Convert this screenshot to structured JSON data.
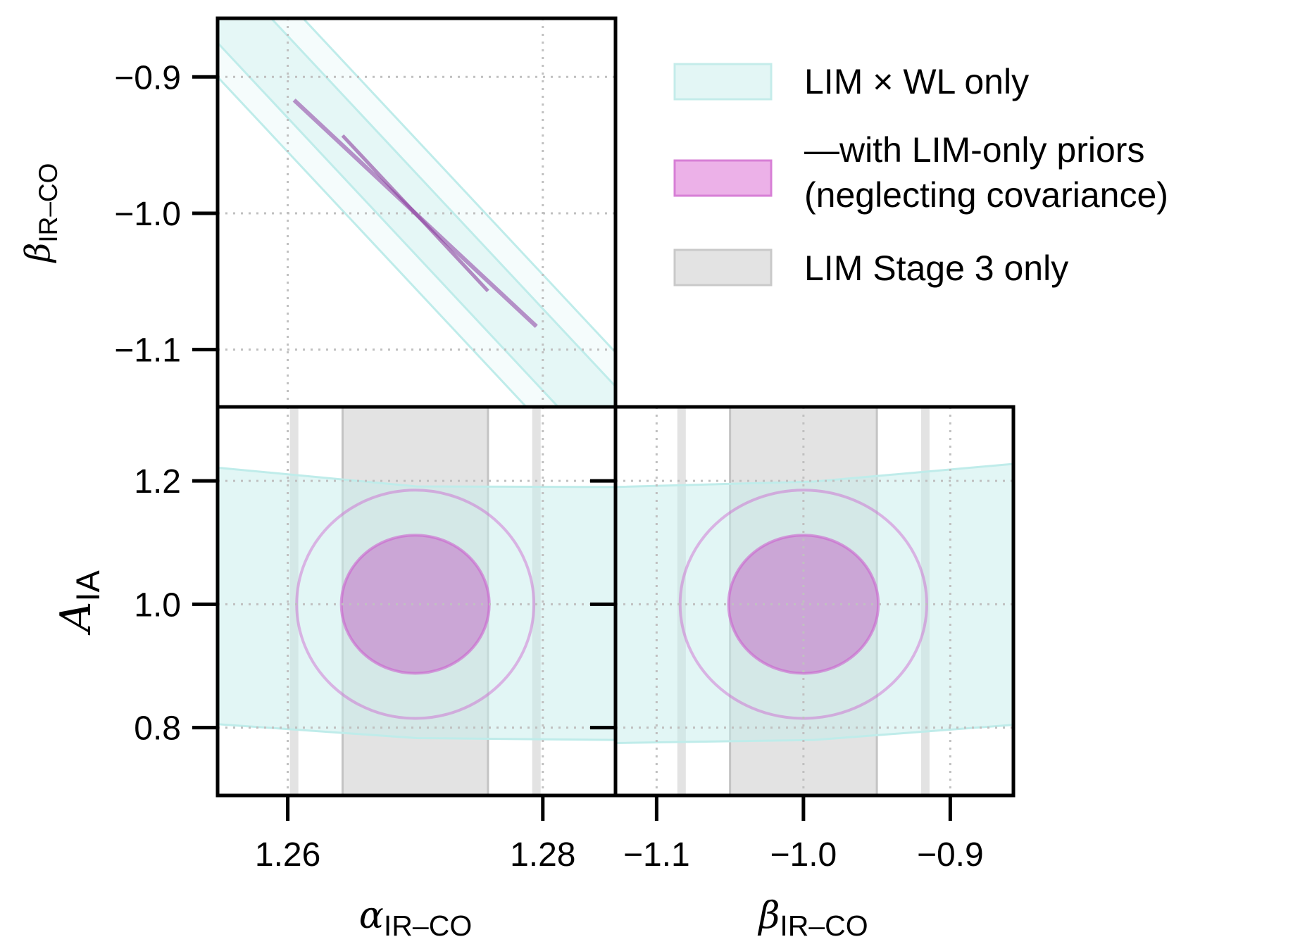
{
  "chart_data": [
    {
      "type": "band",
      "panel": "beta_IR-CO vs alpha_IR-CO",
      "ylabel_sym": "β",
      "ylabel_sub": "IR–CO",
      "xlim": [
        1.2545,
        1.2857
      ],
      "ylim": [
        -1.142,
        -0.857
      ],
      "y_ticks": [
        -0.9,
        -1.0,
        -1.1
      ],
      "y_tick_labels": [
        "−0.9",
        "−1.0",
        "−1.1"
      ],
      "x_ticks": [
        1.26,
        1.28
      ],
      "series": [
        {
          "name": "LIM × WL only",
          "shape": "degeneracy-band",
          "center_x": 1.27,
          "center_y": -1.0,
          "slope": -10.0,
          "half_width_y_1sigma": 0.03,
          "half_width_y_2sigma": 0.055
        },
        {
          "name": "—with LIM-only priors (neglecting covariance)",
          "shape": "degeneracy-line",
          "x": [
            1.2605,
            1.2795
          ],
          "y": [
            -0.917,
            -1.083
          ]
        }
      ]
    },
    {
      "type": "contour",
      "panel": "A_IA vs alpha_IR-CO",
      "xlabel_sym": "α",
      "xlabel_sub": "IR–CO",
      "ylabel_sym": "A",
      "ylabel_sub": "IA",
      "xlim": [
        1.2545,
        1.2857
      ],
      "ylim": [
        0.69,
        1.32
      ],
      "x_ticks": [
        1.26,
        1.28
      ],
      "x_tick_labels": [
        "1.26",
        "1.28"
      ],
      "y_ticks": [
        1.2,
        1.0,
        0.8
      ],
      "y_tick_labels": [
        "1.2",
        "1.0",
        "0.8"
      ],
      "series": [
        {
          "name": "LIM Stage 3 only",
          "shape": "vertical-band",
          "one_sigma": [
            1.2643,
            1.2757
          ],
          "two_sigma": [
            1.2605,
            1.2795
          ]
        },
        {
          "name": "LIM × WL only",
          "shape": "horizontal-band",
          "upper": [
            1.222,
            1.19
          ],
          "lower": [
            0.806,
            0.78
          ]
        },
        {
          "name": "—with LIM-only priors (neglecting covariance)",
          "shape": "ellipse",
          "center": [
            1.27,
            1.0
          ],
          "one_sigma_radii": [
            0.0058,
            0.112
          ],
          "two_sigma_radii": [
            0.0093,
            0.185
          ]
        }
      ]
    },
    {
      "type": "contour",
      "panel": "A_IA vs beta_IR-CO",
      "xlabel_sym": "β",
      "xlabel_sub": "IR–CO",
      "xlim": [
        -1.128,
        -0.857
      ],
      "ylim": [
        0.69,
        1.32
      ],
      "x_ticks": [
        -1.1,
        -1.0,
        -0.9
      ],
      "x_tick_labels": [
        "−1.1",
        "−1.0",
        "−0.9"
      ],
      "y_ticks": [
        1.2,
        1.0,
        0.8
      ],
      "series": [
        {
          "name": "LIM Stage 3 only",
          "shape": "vertical-band",
          "one_sigma": [
            -1.05,
            -0.95
          ],
          "two_sigma": [
            -1.083,
            -0.917
          ]
        },
        {
          "name": "LIM × WL only",
          "shape": "horizontal-band",
          "upper": [
            1.19,
            1.228
          ],
          "lower": [
            0.775,
            0.805
          ]
        },
        {
          "name": "—with LIM-only priors (neglecting covariance)",
          "shape": "ellipse",
          "center": [
            -1.0,
            1.0
          ],
          "one_sigma_radii": [
            0.051,
            0.112
          ],
          "two_sigma_radii": [
            0.084,
            0.185
          ]
        }
      ]
    }
  ],
  "legend": {
    "placement": "top-right",
    "items": [
      {
        "label_lines": [
          "LIM × WL only"
        ],
        "fill": "#e3f6f5",
        "edge": "#c4ecea"
      },
      {
        "label_lines": [
          "—with LIM-only priors",
          "(neglecting covariance)"
        ],
        "fill": "#ecb1e8",
        "edge": "#d77fd6"
      },
      {
        "label_lines": [
          "LIM Stage 3 only"
        ],
        "fill": "#e3e3e3",
        "edge": "#c9c9c9"
      }
    ]
  },
  "colors": {
    "cyan_fill": "#e3f6f5",
    "cyan_edge": "#bfecea",
    "magenta_fill": "#c99ad2",
    "magenta_edge": "#cc62cf",
    "magenta_line": "#a064b3",
    "grey_fill": "#e3e3e3",
    "grey_edge": "#c4c4c4",
    "grid": "#c0c0c0"
  },
  "grid": true
}
